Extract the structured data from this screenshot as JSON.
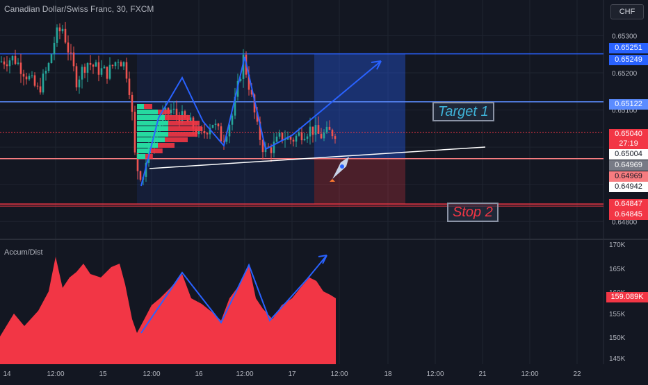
{
  "header": {
    "symbol_title": "Canadian Dollar/Swiss Franc, 30, FXCM",
    "currency_button": "CHF"
  },
  "indicator": {
    "label": "Accum/Dist",
    "last_value": "159.089K",
    "y_ticks": [
      "170K",
      "165K",
      "160K",
      "155K",
      "150K",
      "145K"
    ]
  },
  "price_axis": {
    "ticks": [
      "0.65300",
      "0.65200",
      "0.65100",
      "0.64800"
    ],
    "tags": [
      {
        "text": "0.65251",
        "bg": "#2962ff",
        "fg": "#ffffff"
      },
      {
        "text": "0.65249",
        "bg": "#2962ff",
        "fg": "#ffffff"
      },
      {
        "text": "0.65122",
        "bg": "#5b8cff",
        "fg": "#ffffff"
      },
      {
        "text": "0.65040",
        "bg": "#f23645",
        "fg": "#ffffff"
      },
      {
        "text": "27:19",
        "bg": "#f23645",
        "fg": "#ffffff"
      },
      {
        "text": "0.65004",
        "bg": "#ffffff",
        "fg": "#131722"
      },
      {
        "text": "0.64969",
        "bg": "#787b86",
        "fg": "#ffffff"
      },
      {
        "text": "0.64969",
        "bg": "#f77c80",
        "fg": "#131722"
      },
      {
        "text": "0.64942",
        "bg": "#ffffff",
        "fg": "#131722"
      },
      {
        "text": "0.64847",
        "bg": "#f23645",
        "fg": "#ffffff"
      },
      {
        "text": "0.64845",
        "bg": "#f23645",
        "fg": "#ffffff"
      }
    ]
  },
  "time_axis": {
    "labels": [
      "14",
      "12:00",
      "15",
      "12:00",
      "16",
      "12:00",
      "17",
      "12:00",
      "18",
      "12:00",
      "21",
      "12:00",
      "22"
    ]
  },
  "annotations": {
    "target_label": "Target 1",
    "stop_label": "Stop 2"
  },
  "colors": {
    "background": "#131722",
    "up": "#26a69a",
    "down": "#ef5350",
    "area": "#f23645",
    "drawing_blue": "#2962ff"
  },
  "chart_data": {
    "type": "candlestick",
    "title": "Canadian Dollar/Swiss Franc, 30, FXCM",
    "price_ylim": [
      0.6478,
      0.6534
    ],
    "levels": {
      "target_1": 0.65122,
      "resistance": 0.65251,
      "last": 0.6504,
      "support": 0.64969,
      "stop_2": 0.64847
    },
    "indicator_series": {
      "name": "Accum/Dist",
      "ylim": [
        145000,
        171000
      ],
      "last": 159089
    }
  }
}
